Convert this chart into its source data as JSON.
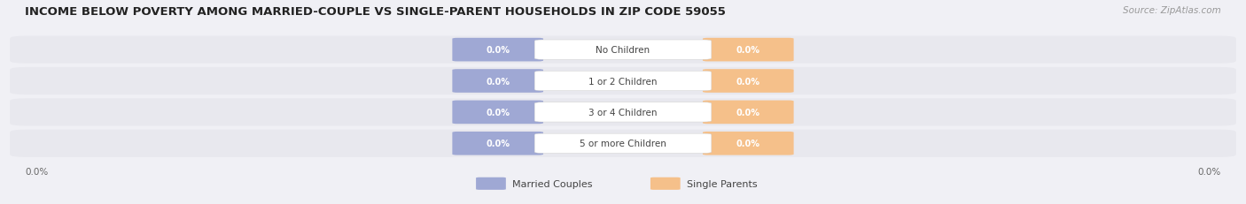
{
  "title": "INCOME BELOW POVERTY AMONG MARRIED-COUPLE VS SINGLE-PARENT HOUSEHOLDS IN ZIP CODE 59055",
  "source": "Source: ZipAtlas.com",
  "categories": [
    "No Children",
    "1 or 2 Children",
    "3 or 4 Children",
    "5 or more Children"
  ],
  "married_values": [
    0.0,
    0.0,
    0.0,
    0.0
  ],
  "single_values": [
    0.0,
    0.0,
    0.0,
    0.0
  ],
  "married_color": "#9fa8d4",
  "single_color": "#f5c08a",
  "bar_bg_color": "#e8e8ee",
  "fig_bg_color": "#f0f0f5",
  "label_bg_color": "#ffffff",
  "married_label": "Married Couples",
  "single_label": "Single Parents",
  "axis_label_left": "0.0%",
  "axis_label_right": "0.0%",
  "title_fontsize": 9.5,
  "source_fontsize": 7.5,
  "value_fontsize": 7,
  "cat_fontsize": 7.5,
  "legend_fontsize": 8,
  "axis_fontsize": 7.5,
  "figsize": [
    14.06,
    2.32
  ],
  "dpi": 100
}
